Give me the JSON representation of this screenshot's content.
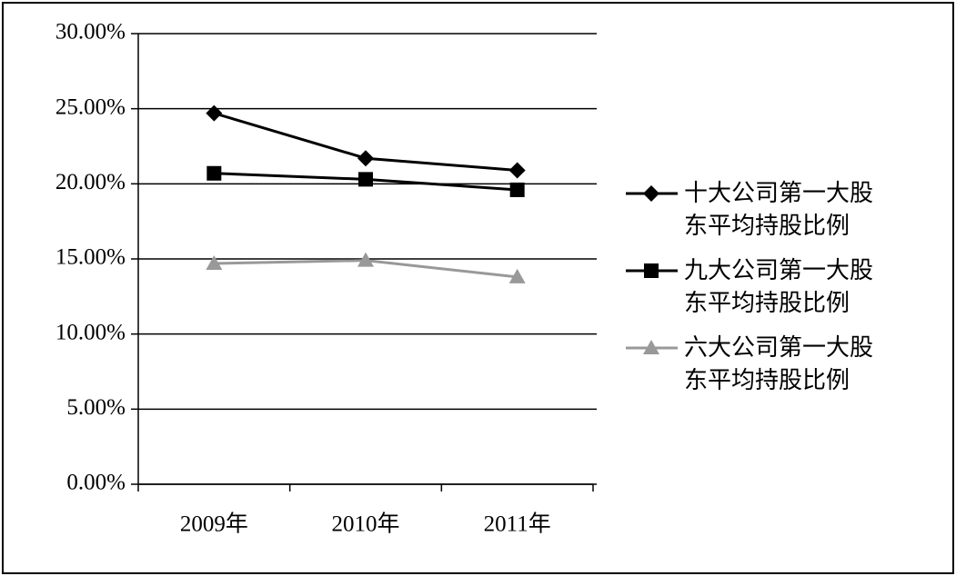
{
  "chart_data": {
    "type": "line",
    "categories": [
      "2009年",
      "2010年",
      "2011年"
    ],
    "series": [
      {
        "name": "十大公司第一大股东平均持股比例",
        "color": "#000000",
        "marker": "diamond",
        "values": [
          24.7,
          21.7,
          20.9
        ]
      },
      {
        "name": "九大公司第一大股东平均持股比例",
        "color": "#000000",
        "marker": "square",
        "values": [
          20.7,
          20.3,
          19.6
        ]
      },
      {
        "name": "六大公司第一大股东平均持股比例",
        "color": "#999999",
        "marker": "triangle",
        "values": [
          14.7,
          14.9,
          13.8
        ]
      }
    ],
    "ylim": [
      0,
      30
    ],
    "yticks": [
      {
        "value": 0,
        "label": "0.00%"
      },
      {
        "value": 5,
        "label": "5.00%"
      },
      {
        "value": 10,
        "label": "10.00%"
      },
      {
        "value": 15,
        "label": "15.00%"
      },
      {
        "value": 20,
        "label": "20.00%"
      },
      {
        "value": 25,
        "label": "25.00%"
      },
      {
        "value": 30,
        "label": "30.00%"
      }
    ],
    "grid": true,
    "legend": "right"
  }
}
